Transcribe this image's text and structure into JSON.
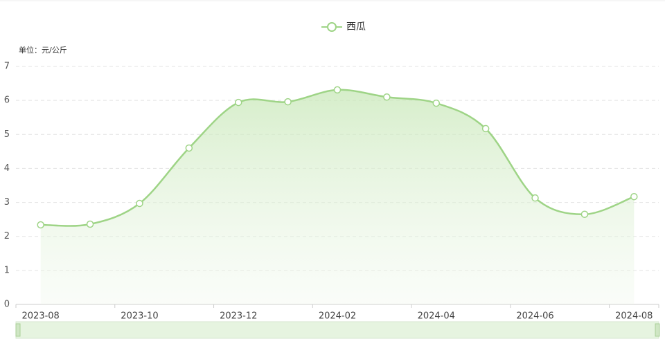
{
  "chart_data": {
    "type": "line",
    "unit_label": "单位：元/公斤",
    "categories": [
      "2023-08",
      null,
      "2023-10",
      null,
      "2023-12",
      null,
      "2024-02",
      null,
      "2024-04",
      null,
      "2024-06",
      null,
      "2024-08"
    ],
    "series": [
      {
        "name": "西瓜",
        "color": "#9ed486",
        "values": [
          2.34,
          2.36,
          2.97,
          4.6,
          5.94,
          5.96,
          6.31,
          6.1,
          5.92,
          5.17,
          3.13,
          2.65,
          3.17
        ]
      }
    ],
    "ylim": [
      0,
      7
    ],
    "yticks": [
      0,
      1,
      2,
      3,
      4,
      5,
      6,
      7
    ],
    "grid": true,
    "smooth": true,
    "area": true,
    "legend": "top"
  }
}
